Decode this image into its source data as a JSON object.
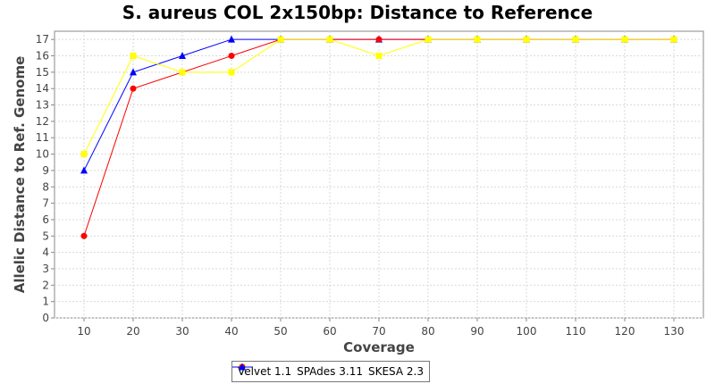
{
  "chart_data": {
    "type": "line",
    "title": "S. aureus COL 2x150bp: Distance to Reference",
    "xlabel": "Coverage",
    "ylabel": "Allelic Distance to Ref. Genome",
    "x": [
      10,
      20,
      30,
      40,
      50,
      60,
      70,
      80,
      90,
      100,
      110,
      120,
      130
    ],
    "xlim": [
      4,
      136
    ],
    "ylim": [
      0,
      17.5
    ],
    "yticks": [
      0,
      1,
      2,
      3,
      4,
      5,
      6,
      7,
      8,
      9,
      10,
      11,
      12,
      13,
      14,
      15,
      16,
      17
    ],
    "grid": true,
    "legend_position": "bottom-center",
    "series": [
      {
        "name": "SKESA 2.3",
        "color": "#0000ff",
        "marker": "triangle",
        "values": [
          9,
          15,
          16,
          17,
          17,
          17,
          17,
          17,
          17,
          17,
          17,
          17,
          17
        ]
      },
      {
        "name": "SPAdes 3.11",
        "color": "#ff0000",
        "marker": "circle",
        "values": [
          5,
          14,
          15,
          16,
          17,
          17,
          17,
          17,
          17,
          17,
          17,
          17,
          17
        ]
      },
      {
        "name": "Velvet 1.1",
        "color": "#ffff00",
        "marker": "square",
        "values": [
          10,
          16,
          15,
          15,
          17,
          17,
          16,
          17,
          17,
          17,
          17,
          17,
          17
        ]
      }
    ],
    "legend_order": [
      "Velvet 1.1",
      "SPAdes 3.11",
      "SKESA 2.3"
    ]
  }
}
